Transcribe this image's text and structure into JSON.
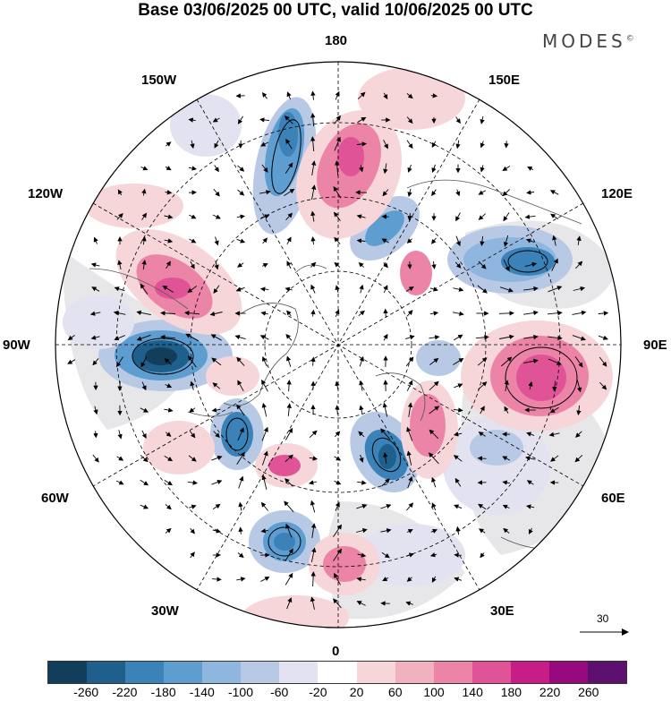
{
  "title": "Base 03/06/2025 00 UTC, valid 10/06/2025 00 UTC",
  "brand": "MODES",
  "brand_mark": "©",
  "map": {
    "projection": "north-polar-stereographic",
    "longitude_labels": {
      "top": "180",
      "bottom": "0",
      "left": "90W",
      "right": "90E",
      "upper_left": "150W",
      "upper_right": "150E",
      "mid_left": "120W",
      "mid_right": "120E",
      "lower_left": "60W",
      "lower_right": "60E",
      "bottom_left": "30W",
      "bottom_right": "30E"
    },
    "gridlines": "dashed",
    "coastlines": true,
    "vectors": "wind arrows",
    "anomalies": [
      {
        "sign": "negative",
        "area": "Gulf of Alaska / 90W",
        "strength": "strong"
      },
      {
        "sign": "negative",
        "area": "Bering / 165W",
        "strength": "moderate"
      },
      {
        "sign": "negative",
        "area": "East Siberia",
        "strength": "moderate"
      },
      {
        "sign": "negative",
        "area": "Far East Russia 110E",
        "strength": "moderate"
      },
      {
        "sign": "negative",
        "area": "Greenland 70W",
        "strength": "moderate"
      },
      {
        "sign": "negative",
        "area": "Scandinavia 20E",
        "strength": "strong"
      },
      {
        "sign": "negative",
        "area": "North Atlantic 20W",
        "strength": "moderate"
      },
      {
        "sign": "positive",
        "area": "Central Siberia 85E",
        "strength": "strong"
      },
      {
        "sign": "positive",
        "area": "Western Canada 110W",
        "strength": "strong"
      },
      {
        "sign": "positive",
        "area": "Chukchi 175W",
        "strength": "moderate"
      },
      {
        "sign": "positive",
        "area": "Urals 45E",
        "strength": "moderate"
      },
      {
        "sign": "positive",
        "area": "British Isles 5W",
        "strength": "moderate"
      },
      {
        "sign": "positive",
        "area": "North Atlantic 40W",
        "strength": "moderate"
      }
    ]
  },
  "reference_vector": {
    "label": "30"
  },
  "colorbar": {
    "colors": [
      "#123e5c",
      "#1f5f8c",
      "#3b82b9",
      "#5e9dd0",
      "#8fb6de",
      "#b8c9e6",
      "#e2e2f0",
      "#ffffff",
      "#f6d6d9",
      "#f2b1bf",
      "#ec84a8",
      "#e05497",
      "#c81c86",
      "#97097e",
      "#5e1070"
    ],
    "ticks": [
      "-260",
      "-220",
      "-180",
      "-140",
      "-100",
      "-60",
      "-20",
      "20",
      "60",
      "100",
      "140",
      "180",
      "220",
      "260"
    ]
  }
}
